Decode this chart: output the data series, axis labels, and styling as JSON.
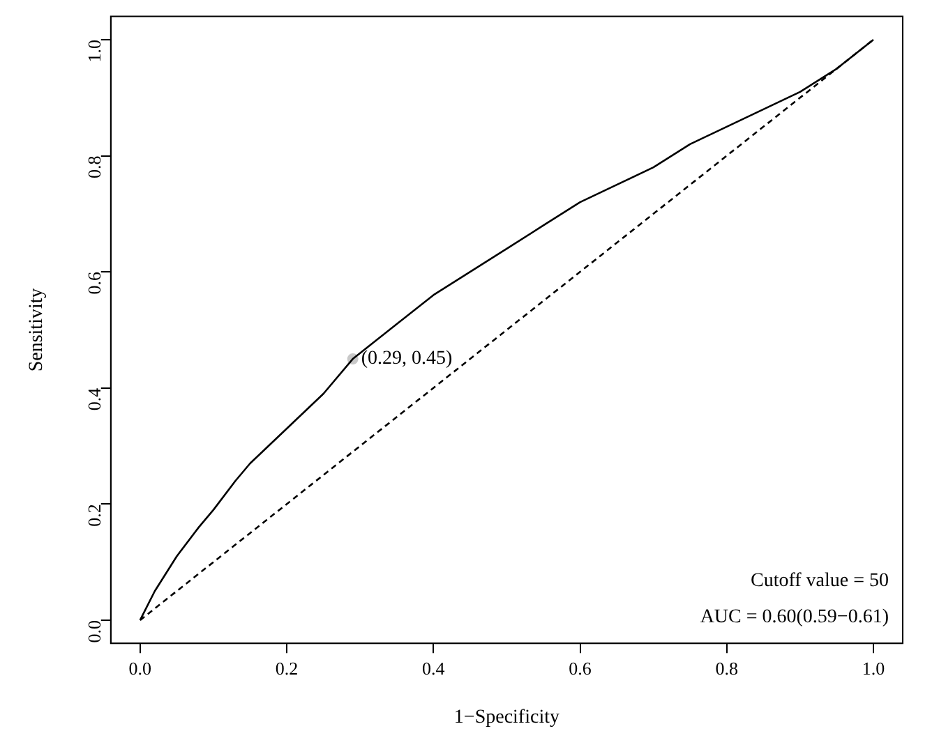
{
  "chart_data": {
    "type": "line",
    "xlabel": "1−Specificity",
    "ylabel": "Sensitivity",
    "xlim": [
      -0.04,
      1.04
    ],
    "ylim": [
      -0.04,
      1.04
    ],
    "xticks": [
      {
        "value": 0,
        "label": "0.0"
      },
      {
        "value": 0.2,
        "label": "0.2"
      },
      {
        "value": 0.4,
        "label": "0.4"
      },
      {
        "value": 0.6,
        "label": "0.6"
      },
      {
        "value": 0.8,
        "label": "0.8"
      },
      {
        "value": 1,
        "label": "1.0"
      }
    ],
    "yticks": [
      {
        "value": 0,
        "label": "0.0"
      },
      {
        "value": 0.2,
        "label": "0.2"
      },
      {
        "value": 0.4,
        "label": "0.4"
      },
      {
        "value": 0.6,
        "label": "0.6"
      },
      {
        "value": 0.8,
        "label": "0.8"
      },
      {
        "value": 1,
        "label": "1.0"
      }
    ],
    "grid": false,
    "series": [
      {
        "color": "#000000",
        "line_style": "solid",
        "marker": "none",
        "x": [
          0,
          0.02,
          0.05,
          0.08,
          0.1,
          0.13,
          0.15,
          0.2,
          0.25,
          0.29,
          0.32,
          0.35,
          0.4,
          0.45,
          0.5,
          0.55,
          0.6,
          0.65,
          0.7,
          0.75,
          0.8,
          0.85,
          0.9,
          0.95,
          1
        ],
        "values": [
          0,
          0.05,
          0.11,
          0.16,
          0.19,
          0.24,
          0.27,
          0.33,
          0.39,
          0.45,
          0.48,
          0.51,
          0.56,
          0.6,
          0.64,
          0.68,
          0.72,
          0.75,
          0.78,
          0.82,
          0.85,
          0.88,
          0.91,
          0.95,
          1
        ]
      },
      {
        "type": "line",
        "color": "#000000",
        "line_style": "dashed",
        "marker": "none",
        "x": [
          0,
          1
        ],
        "values": [
          0,
          1
        ]
      },
      {
        "type": "scatter",
        "color": "#c8c8c8",
        "marker": "circle",
        "x": [
          0.29
        ],
        "values": [
          0.45
        ]
      }
    ],
    "annotations": [
      {
        "text": "(0.29, 0.45)",
        "x": 0.29,
        "y": 0.45
      },
      "Cutoff value = 50",
      "AUC = 0.60(0.59−0.61)"
    ]
  }
}
